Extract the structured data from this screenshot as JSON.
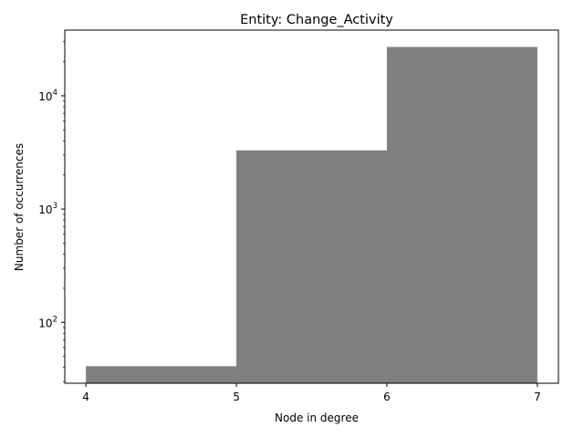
{
  "chart_data": {
    "type": "bar",
    "subtype": "histogram",
    "title": "Entity: Change_Activity",
    "xlabel": "Node in degree",
    "ylabel": "Number of occurrences",
    "x_ticks": [
      4,
      5,
      6,
      7
    ],
    "y_scale": "log",
    "y_ticks": [
      {
        "value": 100,
        "base": "10",
        "exp": "2"
      },
      {
        "value": 1000,
        "base": "10",
        "exp": "3"
      },
      {
        "value": 10000,
        "base": "10",
        "exp": "4"
      }
    ],
    "xlim": [
      3.86,
      7.14
    ],
    "ylim": [
      29,
      38000
    ],
    "bins": [
      {
        "x0": 4,
        "x1": 5,
        "value": 41
      },
      {
        "x0": 5,
        "x1": 6,
        "value": 3300
      },
      {
        "x0": 6,
        "x1": 7,
        "value": 27000
      }
    ],
    "bar_color": "#808080",
    "grid": false,
    "legend": "none"
  }
}
